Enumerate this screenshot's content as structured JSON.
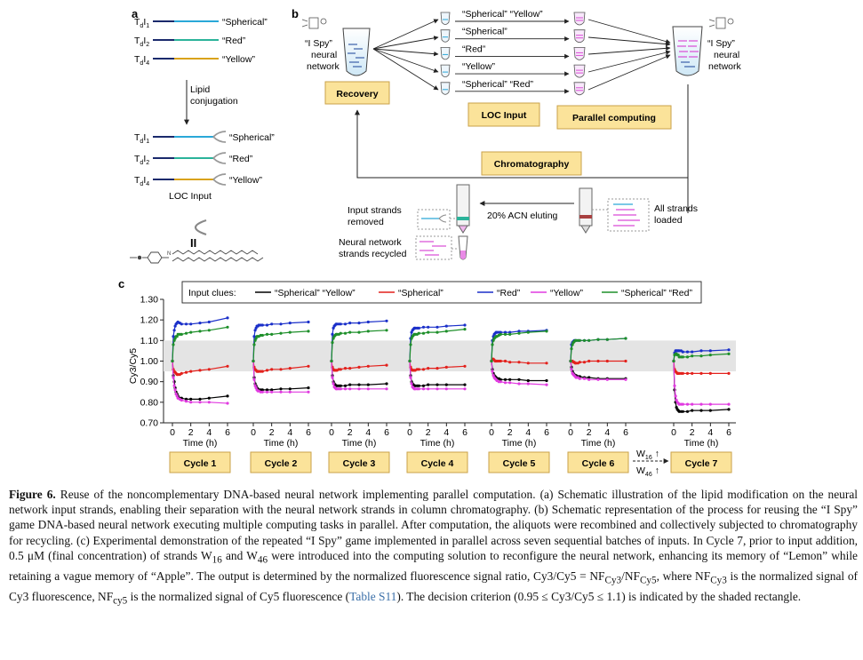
{
  "panel_a": {
    "label": "a",
    "top_rows": [
      {
        "name_main": "T",
        "name_sub1": "d",
        "name_mid": "I",
        "name_sub2": "1",
        "clue": "“Spherical”",
        "color": "#2aa8d8"
      },
      {
        "name_main": "T",
        "name_sub1": "d",
        "name_mid": "I",
        "name_sub2": "2",
        "clue": "“Red”",
        "color": "#2bb39a"
      },
      {
        "name_main": "T",
        "name_sub1": "d",
        "name_mid": "I",
        "name_sub2": "4",
        "clue": "“Yellow”",
        "color": "#d9a21a"
      }
    ],
    "arrow_label_1": "Lipid",
    "arrow_label_2": "conjugation",
    "loc_input_label": "LOC Input",
    "equals_sign": "II"
  },
  "panel_b": {
    "label": "b",
    "left_network_1": "“I Spy”",
    "left_network_2": "neural",
    "left_network_3": "network",
    "right_network_1": "“I Spy”",
    "right_network_2": "neural",
    "right_network_3": "network",
    "recovery": "Recovery",
    "loc_input": "LOC Input",
    "parallel_computing": "Parallel computing",
    "chromatography": "Chromatography",
    "tube_labels": [
      "“Spherical”  “Yellow”",
      "“Spherical”",
      "“Red”",
      "“Yellow”",
      "“Spherical”  “Red”"
    ],
    "input_removed_1": "Input strands",
    "input_removed_2": "removed",
    "eluting": "20% ACN eluting",
    "all_strands_1": "All strands",
    "all_strands_2": "loaded",
    "recycled_1": "Neural network",
    "recycled_2": "strands recycled"
  },
  "panel_c": {
    "label": "c",
    "legend_title": "Input clues:",
    "ylabel": "Cy3/Cy5",
    "xlabel": "Time (h)",
    "w_note_1": "W",
    "w_note_1_sub": "16",
    "w_note_2": "W",
    "w_note_2_sub": "46"
  },
  "chart_data": {
    "type": "line",
    "ylabel": "Cy3/Cy5",
    "xlabel": "Time (h)",
    "ylim": [
      0.7,
      1.3
    ],
    "yticks": [
      "0.70",
      "0.80",
      "0.90",
      "1.00",
      "1.10",
      "1.20",
      "1.30"
    ],
    "xlim": [
      0,
      6
    ],
    "xticks": [
      "0",
      "2",
      "4",
      "6"
    ],
    "shaded_band": [
      0.95,
      1.1
    ],
    "legend_placement": "top",
    "series_styles": [
      {
        "name": "“Spherical” “Yellow”",
        "color": "#000000"
      },
      {
        "name": "“Spherical”",
        "color": "#e3211c"
      },
      {
        "name": "“Red”",
        "color": "#1a2fc9"
      },
      {
        "name": "“Yellow”",
        "color": "#e13ae0"
      },
      {
        "name": "“Spherical” “Red”",
        "color": "#1e8f2a"
      }
    ],
    "x": [
      0,
      0.1,
      0.2,
      0.3,
      0.4,
      0.5,
      0.6,
      0.8,
      1.0,
      1.5,
      2,
      3,
      4,
      6
    ],
    "cycles": [
      {
        "name": "Cycle 1",
        "series": [
          [
            1.0,
            0.93,
            0.9,
            0.87,
            0.85,
            0.84,
            0.83,
            0.82,
            0.82,
            0.815,
            0.815,
            0.815,
            0.82,
            0.83
          ],
          [
            1.0,
            0.96,
            0.95,
            0.945,
            0.94,
            0.935,
            0.935,
            0.935,
            0.94,
            0.945,
            0.95,
            0.955,
            0.96,
            0.975
          ],
          [
            1.0,
            1.12,
            1.15,
            1.17,
            1.18,
            1.185,
            1.19,
            1.185,
            1.18,
            1.18,
            1.18,
            1.185,
            1.19,
            1.21
          ],
          [
            1.0,
            0.92,
            0.88,
            0.86,
            0.84,
            0.83,
            0.82,
            0.815,
            0.81,
            0.805,
            0.8,
            0.8,
            0.8,
            0.795
          ],
          [
            1.0,
            1.08,
            1.1,
            1.11,
            1.12,
            1.12,
            1.13,
            1.13,
            1.13,
            1.135,
            1.14,
            1.145,
            1.15,
            1.165
          ]
        ]
      },
      {
        "name": "Cycle 2",
        "series": [
          [
            1.0,
            0.92,
            0.89,
            0.88,
            0.87,
            0.865,
            0.86,
            0.86,
            0.86,
            0.86,
            0.86,
            0.865,
            0.865,
            0.87
          ],
          [
            1.0,
            0.97,
            0.96,
            0.955,
            0.95,
            0.95,
            0.95,
            0.95,
            0.95,
            0.955,
            0.96,
            0.96,
            0.965,
            0.975
          ],
          [
            1.0,
            1.12,
            1.15,
            1.16,
            1.17,
            1.17,
            1.175,
            1.175,
            1.175,
            1.175,
            1.18,
            1.18,
            1.185,
            1.19
          ],
          [
            1.0,
            0.91,
            0.88,
            0.87,
            0.86,
            0.855,
            0.855,
            0.85,
            0.85,
            0.85,
            0.85,
            0.85,
            0.85,
            0.85
          ],
          [
            1.0,
            1.08,
            1.1,
            1.11,
            1.12,
            1.12,
            1.12,
            1.125,
            1.125,
            1.13,
            1.13,
            1.135,
            1.14,
            1.145
          ]
        ]
      },
      {
        "name": "Cycle 3",
        "series": [
          [
            1.0,
            0.93,
            0.9,
            0.89,
            0.885,
            0.88,
            0.88,
            0.88,
            0.88,
            0.88,
            0.885,
            0.885,
            0.885,
            0.89
          ],
          [
            1.0,
            0.97,
            0.96,
            0.955,
            0.955,
            0.955,
            0.955,
            0.96,
            0.96,
            0.965,
            0.965,
            0.97,
            0.975,
            0.98
          ],
          [
            1.0,
            1.13,
            1.16,
            1.17,
            1.175,
            1.18,
            1.18,
            1.18,
            1.18,
            1.18,
            1.185,
            1.185,
            1.19,
            1.195
          ],
          [
            1.0,
            0.92,
            0.89,
            0.875,
            0.87,
            0.865,
            0.865,
            0.865,
            0.865,
            0.865,
            0.865,
            0.865,
            0.865,
            0.865
          ],
          [
            1.0,
            1.09,
            1.11,
            1.12,
            1.125,
            1.13,
            1.13,
            1.13,
            1.135,
            1.135,
            1.14,
            1.14,
            1.145,
            1.15
          ]
        ]
      },
      {
        "name": "Cycle 4",
        "series": [
          [
            1.0,
            0.93,
            0.9,
            0.89,
            0.885,
            0.88,
            0.88,
            0.88,
            0.88,
            0.88,
            0.885,
            0.885,
            0.885,
            0.885
          ],
          [
            1.0,
            0.97,
            0.96,
            0.955,
            0.955,
            0.955,
            0.955,
            0.96,
            0.96,
            0.96,
            0.965,
            0.965,
            0.97,
            0.975
          ],
          [
            1.0,
            1.11,
            1.14,
            1.15,
            1.155,
            1.16,
            1.16,
            1.16,
            1.16,
            1.165,
            1.165,
            1.165,
            1.17,
            1.175
          ],
          [
            1.0,
            0.92,
            0.89,
            0.875,
            0.87,
            0.865,
            0.865,
            0.865,
            0.865,
            0.865,
            0.865,
            0.865,
            0.865,
            0.865
          ],
          [
            1.0,
            1.08,
            1.11,
            1.12,
            1.125,
            1.13,
            1.13,
            1.13,
            1.135,
            1.135,
            1.14,
            1.14,
            1.145,
            1.155
          ]
        ]
      },
      {
        "name": "Cycle 5",
        "series": [
          [
            1.0,
            0.96,
            0.94,
            0.93,
            0.925,
            0.92,
            0.915,
            0.915,
            0.91,
            0.91,
            0.91,
            0.91,
            0.905,
            0.905
          ],
          [
            1.0,
            1.01,
            1.01,
            1.005,
            1.0,
            1.0,
            1.0,
            1.0,
            1.0,
            1.0,
            0.995,
            0.995,
            0.99,
            0.99
          ],
          [
            1.0,
            1.1,
            1.12,
            1.13,
            1.135,
            1.14,
            1.14,
            1.14,
            1.14,
            1.14,
            1.14,
            1.145,
            1.145,
            1.15
          ],
          [
            1.0,
            0.95,
            0.93,
            0.92,
            0.915,
            0.91,
            0.905,
            0.9,
            0.9,
            0.895,
            0.895,
            0.89,
            0.89,
            0.885
          ],
          [
            1.0,
            1.08,
            1.1,
            1.11,
            1.115,
            1.12,
            1.12,
            1.125,
            1.13,
            1.13,
            1.13,
            1.135,
            1.14,
            1.145
          ]
        ]
      },
      {
        "name": "Cycle 6",
        "series": [
          [
            1.0,
            0.97,
            0.95,
            0.94,
            0.935,
            0.93,
            0.93,
            0.925,
            0.925,
            0.92,
            0.92,
            0.915,
            0.915,
            0.915
          ],
          [
            1.0,
            1.0,
            1.0,
            0.995,
            0.995,
            0.99,
            0.99,
            0.99,
            0.995,
            0.995,
            1.0,
            1.0,
            1.0,
            1.0
          ],
          [
            1.0,
            1.08,
            1.09,
            1.095,
            1.1,
            1.1,
            1.1,
            1.1,
            1.1,
            1.1,
            1.1,
            1.105,
            1.105,
            1.11
          ],
          [
            1.0,
            0.96,
            0.94,
            0.935,
            0.93,
            0.925,
            0.92,
            0.92,
            0.915,
            0.915,
            0.91,
            0.91,
            0.91,
            0.91
          ],
          [
            1.0,
            1.06,
            1.08,
            1.09,
            1.095,
            1.1,
            1.1,
            1.1,
            1.1,
            1.1,
            1.1,
            1.105,
            1.105,
            1.11
          ]
        ]
      },
      {
        "name": "Cycle 7",
        "series": [
          [
            1.0,
            0.86,
            0.8,
            0.775,
            0.765,
            0.76,
            0.755,
            0.755,
            0.755,
            0.755,
            0.76,
            0.76,
            0.76,
            0.765
          ],
          [
            1.0,
            0.96,
            0.95,
            0.945,
            0.94,
            0.94,
            0.94,
            0.94,
            0.94,
            0.94,
            0.94,
            0.94,
            0.94,
            0.94
          ],
          [
            1.0,
            1.04,
            1.05,
            1.05,
            1.05,
            1.05,
            1.05,
            1.05,
            1.045,
            1.045,
            1.045,
            1.05,
            1.05,
            1.055
          ],
          [
            1.0,
            0.88,
            0.83,
            0.81,
            0.8,
            0.795,
            0.79,
            0.79,
            0.79,
            0.79,
            0.79,
            0.79,
            0.79,
            0.79
          ],
          [
            1.0,
            1.03,
            1.035,
            1.035,
            1.03,
            1.03,
            1.02,
            1.02,
            1.02,
            1.02,
            1.025,
            1.025,
            1.03,
            1.035
          ]
        ]
      }
    ]
  },
  "caption": {
    "tag": "Figure 6.",
    "text_1": " Reuse of the noncomplementary DNA-based neural network implementing parallel computation. (a) Schematic illustration of the lipid modification on the neural network input strands, enabling their separation with the neural network strands in column chromatography. (b) Schematic representation of the process for reusing the “I Spy” game DNA-based neural network executing multiple computing tasks in parallel. After computation, the aliquots were recombined and collectively subjected to chromatography for recycling. (c) Experimental demonstration of the repeated “I Spy” game implemented in parallel across seven sequential batches of inputs. In Cycle 7, prior to input addition, 0.5 μM (final concentration) of strands W",
    "sub_16": "16",
    "text_2": " and W",
    "sub_46": "46",
    "text_3": " were introduced into the computing solution to reconfigure the neural network, enhancing its memory of “Lemon” while retaining a vague memory of “Apple”. The output is determined by the normalized fluorescence signal ratio, Cy3/Cy5 = NF",
    "sub_cy3": "Cy3",
    "text_4": "/NF",
    "sub_cy5": "Cy5",
    "text_5": ", where NF",
    "sub_cy3b": "Cy3",
    "text_6": " is the normalized signal of Cy3 fluorescence, NF",
    "sub_cy5b": "cy5",
    "text_7": " is the normalized signal of Cy5 fluorescence (",
    "link": "Table S11",
    "text_8": "). The decision criterion (0.95 ≤ Cy3/Cy5 ≤ 1.1) is indicated by the shaded rectangle."
  }
}
